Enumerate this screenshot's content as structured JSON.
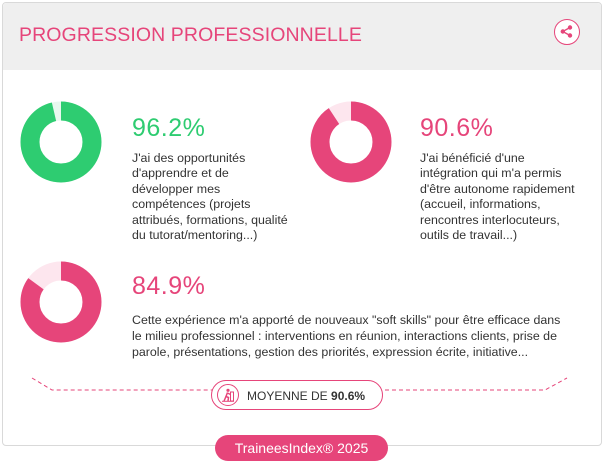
{
  "header": {
    "title": "PROGRESSION PROFESSIONNELLE",
    "share_icon": "share-icon"
  },
  "colors": {
    "accent_pink": "#e6457a",
    "green": "#2ecc71",
    "track_pink": "#fde6ee",
    "header_bg": "#efefef"
  },
  "stats": [
    {
      "percent": "96.2%",
      "value": 96.2,
      "color": "#2ecc71",
      "track": "#e9f8ef",
      "description_lines": [
        "J'ai des opportunités",
        "d'apprendre et de",
        "développer mes",
        "compétences (projets",
        "attribués, formations, qualité",
        "du tutorat/mentoring...)"
      ]
    },
    {
      "percent": "90.6%",
      "value": 90.6,
      "color": "#e6457a",
      "track": "#fde6ee",
      "description_lines": [
        "J'ai bénéficié d'une",
        "intégration qui m'a permis",
        "d'être autonome rapidement",
        "(accueil, informations,",
        "rencontres interlocuteurs,",
        "outils de travail...)"
      ]
    },
    {
      "percent": "84.9%",
      "value": 84.9,
      "color": "#e6457a",
      "track": "#fde6ee",
      "description_lines": [
        "Cette expérience m'a apporté de nouveaux \"soft skills\" pour être efficace dans",
        "le milieu professionnel : interventions en réunion, interactions clients, prise de",
        "parole, présentations, gestion des priorités, expression écrite, initiative..."
      ]
    }
  ],
  "average": {
    "label": "MOYENNE DE",
    "value": "90.6%",
    "icon": "climber-icon"
  },
  "footer": {
    "badge": "TraineesIndex® 2025"
  }
}
